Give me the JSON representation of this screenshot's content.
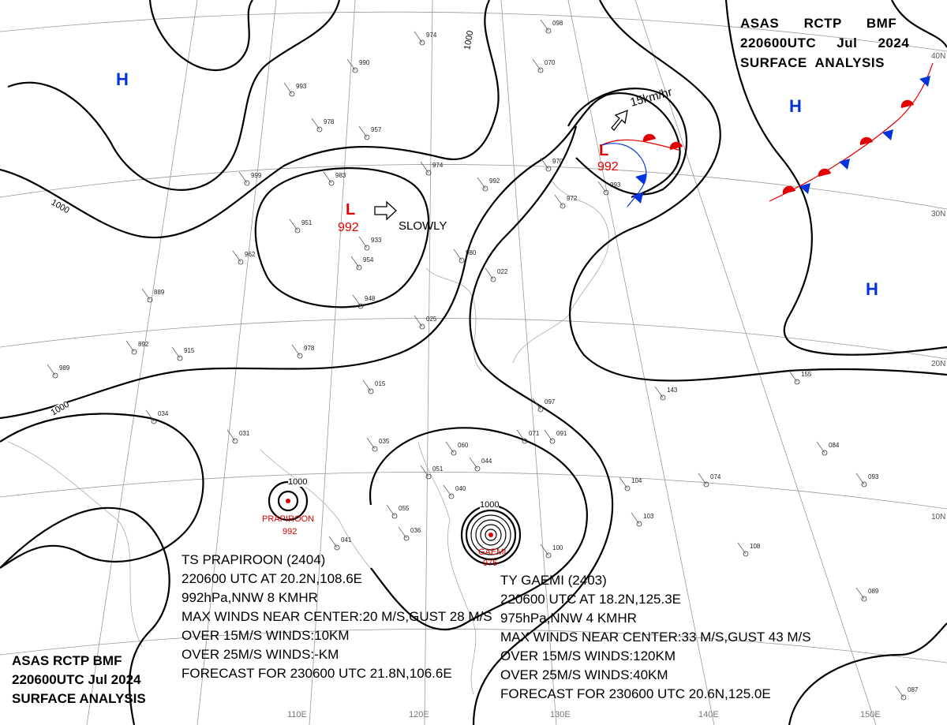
{
  "header_top": {
    "line1": "ASAS      RCTP      BMF",
    "line2": "220600UTC     Jul     2024",
    "line3": "SURFACE  ANALYSIS"
  },
  "header_bottom": {
    "line1": "ASAS      RCTP      BMF",
    "line2": "220600UTC     Jul     2024",
    "line3": "SURFACE  ANALYSIS"
  },
  "storms": [
    {
      "name": "PRAPIROON",
      "pressure": "992",
      "lines": [
        "TS PRAPIROON (2404)",
        "220600 UTC AT 20.2N,108.6E",
        "992hPa,NNW 8 KMHR",
        "MAX WINDS NEAR CENTER:20 M/S,GUST 28 M/S",
        "OVER 15M/S WINDS:10KM",
        "OVER 25M/S WINDS:-KM",
        "FORECAST FOR 230600 UTC 21.8N,106.6E"
      ]
    },
    {
      "name": "GAEMI",
      "pressure": "975",
      "lines": [
        "TY GAEMI (2403)",
        "220600 UTC AT 18.2N,125.3E",
        "975hPa,NNW 4 KMHR",
        "MAX WINDS NEAR CENTER:33 M/S,GUST 43 M/S",
        "OVER 15M/S WINDS:120KM",
        "OVER 25M/S WINDS:40KM",
        "FORECAST FOR 230600 UTC 20.6N,125.0E"
      ]
    }
  ],
  "pressure_centers": [
    {
      "type": "H",
      "color": "#0033dd"
    },
    {
      "type": "H",
      "color": "#0033dd"
    },
    {
      "type": "H",
      "color": "#0033dd"
    },
    {
      "type": "L",
      "value": "992",
      "color": "#e00000",
      "motion": "SLOWLY"
    },
    {
      "type": "L",
      "value": "992",
      "color": "#e00000",
      "motion": "15km/hr"
    }
  ],
  "isobar_label": "1000",
  "lat_labels": [
    "40N",
    "30N",
    "20N",
    "10N"
  ],
  "lon_labels": [
    "110E",
    "120E",
    "130E",
    "140E",
    "150E"
  ],
  "stations": [
    "974",
    "990",
    "993",
    "978",
    "957",
    "983",
    "999",
    "951",
    "933",
    "954",
    "948",
    "962",
    "889",
    "892",
    "915",
    "978",
    "974",
    "992",
    "970",
    "972",
    "993",
    "980",
    "022",
    "025",
    "015",
    "035",
    "060",
    "044",
    "051",
    "040",
    "055",
    "071",
    "097",
    "091",
    "143",
    "155",
    "104",
    "103",
    "108",
    "089",
    "034",
    "031",
    "989",
    "041",
    "036",
    "100",
    "084",
    "087",
    "074",
    "093",
    "070",
    "098"
  ],
  "colors": {
    "high": "#0033dd",
    "low": "#e00000",
    "warm_front": "#e00000",
    "cold_front": "#0033dd",
    "isobar": "#000000"
  }
}
